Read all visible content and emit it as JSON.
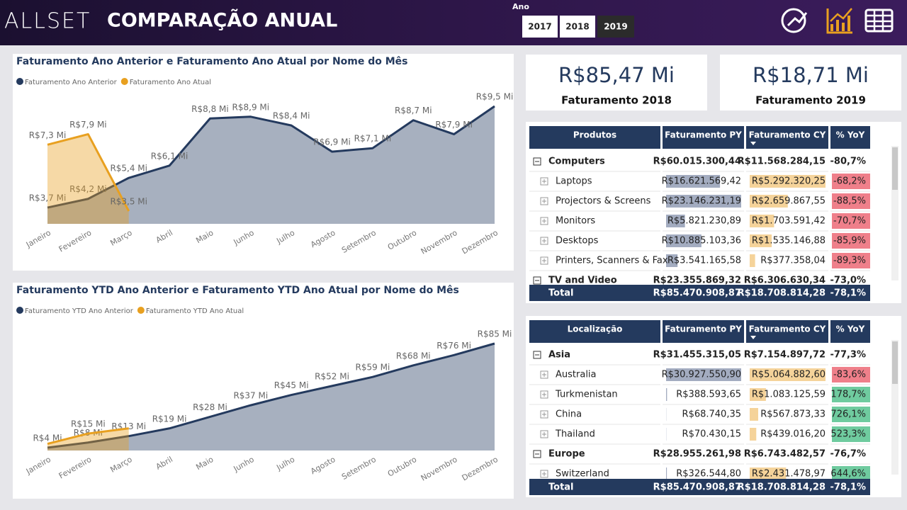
{
  "header": {
    "logo": "ALLSET",
    "title": "COMPARAÇÃO ANUAL",
    "slicer": {
      "label": "Ano",
      "options": [
        "2017",
        "2018",
        "2019"
      ],
      "selected": "2019"
    }
  },
  "kpis": [
    {
      "value": "R$85,47 Mi",
      "label": "Faturamento 2018"
    },
    {
      "value": "R$18,71 Mi",
      "label": "Faturamento 2019"
    }
  ],
  "chart_data": [
    {
      "type": "area",
      "title": "Faturamento Ano Anterior e Faturamento Ano Atual por Nome do Mês",
      "categories": [
        "Janeiro",
        "Fevereiro",
        "Março",
        "Abril",
        "Maio",
        "Junho",
        "Julho",
        "Agosto",
        "Setembro",
        "Outubro",
        "Novembro",
        "Dezembro"
      ],
      "series": [
        {
          "name": "Faturamento Ano Anterior",
          "color": "#243a5e",
          "values": [
            3.7,
            4.2,
            5.4,
            6.1,
            8.8,
            8.9,
            8.4,
            6.9,
            7.1,
            8.7,
            7.9,
            9.5
          ],
          "value_labels": [
            "R$3,7 Mi",
            "R$4,2 Mi",
            "R$5,4 Mi",
            "R$6,1 Mi",
            "R$8,8 Mi",
            "R$8,9 Mi",
            "R$8,4 Mi",
            "R$6,9 Mi",
            "R$7,1 Mi",
            "R$8,7 Mi",
            "R$7,9 Mi",
            "R$9,5 Mi"
          ]
        },
        {
          "name": "Faturamento Ano Atual",
          "color": "#e8a020",
          "values": [
            7.3,
            7.9,
            3.5,
            null,
            null,
            null,
            null,
            null,
            null,
            null,
            null,
            null
          ],
          "value_labels": [
            "R$7,3 Mi",
            "R$7,9 Mi",
            "R$3,5 Mi",
            null,
            null,
            null,
            null,
            null,
            null,
            null,
            null,
            null
          ]
        }
      ]
    },
    {
      "type": "area",
      "title": "Faturamento YTD Ano Anterior e Faturamento YTD Ano Atual por Nome do Mês",
      "categories": [
        "Janeiro",
        "Fevereiro",
        "Março",
        "Abril",
        "Maio",
        "Junho",
        "Julho",
        "Agosto",
        "Setembro",
        "Outubro",
        "Novembro",
        "Dezembro"
      ],
      "series": [
        {
          "name": "Faturamento YTD Ano Anterior",
          "color": "#243a5e",
          "values": [
            4,
            8,
            13,
            19,
            28,
            37,
            45,
            52,
            59,
            68,
            76,
            85
          ],
          "value_labels": [
            "R$4 Mi",
            "R$8 Mi",
            "R$13 Mi",
            "R$19 Mi",
            "R$28 Mi",
            "R$37 Mi",
            "R$45 Mi",
            "R$52 Mi",
            "R$59 Mi",
            "R$68 Mi",
            "R$76 Mi",
            "R$85 Mi"
          ]
        },
        {
          "name": "Faturamento YTD Ano Atual",
          "color": "#e8a020",
          "values": [
            7,
            15,
            19,
            null,
            null,
            null,
            null,
            null,
            null,
            null,
            null,
            null
          ],
          "value_labels": [
            null,
            "R$15 Mi",
            null,
            null,
            null,
            null,
            null,
            null,
            null,
            null,
            null,
            null
          ]
        }
      ]
    }
  ],
  "tables": [
    {
      "columns": [
        "Produtos",
        "Faturamento PY",
        "Faturamento CY",
        "% YoY"
      ],
      "groups": [
        {
          "name": "Computers",
          "py": "R$60.015.300,44",
          "cy": "R$11.568.284,15",
          "yoy": "-80,7%",
          "children": [
            {
              "name": "Laptops",
              "py": "R$16.621.569,42",
              "cy": "R$5.292.320,25",
              "yoy": "-68,2%"
            },
            {
              "name": "Projectors & Screens",
              "py": "R$23.146.231,19",
              "cy": "R$2.659.867,55",
              "yoy": "-88,5%"
            },
            {
              "name": "Monitors",
              "py": "R$5.821.230,89",
              "cy": "R$1.703.591,42",
              "yoy": "-70,7%"
            },
            {
              "name": "Desktops",
              "py": "R$10.885.103,36",
              "cy": "R$1.535.146,88",
              "yoy": "-85,9%"
            },
            {
              "name": "Printers, Scanners & Fax",
              "py": "R$3.541.165,58",
              "cy": "R$377.358,04",
              "yoy": "-89,3%"
            }
          ]
        },
        {
          "name": "TV and Video",
          "py": "R$23.355.869,32",
          "cy": "R$6.306.630,34",
          "yoy": "-73,0%",
          "children": []
        }
      ],
      "total": {
        "label": "Total",
        "py": "R$85.470.908,87",
        "cy": "R$18.708.814,28",
        "yoy": "-78,1%"
      }
    },
    {
      "columns": [
        "Localização",
        "Faturamento PY",
        "Faturamento CY",
        "% YoY"
      ],
      "groups": [
        {
          "name": "Asia",
          "py": "R$31.455.315,05",
          "cy": "R$7.154.897,72",
          "yoy": "-77,3%",
          "children": [
            {
              "name": "Australia",
              "py": "R$30.927.550,90",
              "cy": "R$5.064.882,60",
              "yoy": "-83,6%"
            },
            {
              "name": "Turkmenistan",
              "py": "R$388.593,65",
              "cy": "R$1.083.125,59",
              "yoy": "178,7%"
            },
            {
              "name": "China",
              "py": "R$68.740,35",
              "cy": "R$567.873,33",
              "yoy": "726,1%"
            },
            {
              "name": "Thailand",
              "py": "R$70.430,15",
              "cy": "R$439.016,20",
              "yoy": "523,3%"
            }
          ]
        },
        {
          "name": "Europe",
          "py": "R$28.955.261,98",
          "cy": "R$6.743.482,57",
          "yoy": "-76,7%",
          "children": [
            {
              "name": "Switzerland",
              "py": "R$326.544,80",
              "cy": "R$2.431.478,97",
              "yoy": "644,6%"
            }
          ]
        }
      ],
      "total": {
        "label": "Total",
        "py": "R$85.470.908,87",
        "cy": "R$18.708.814,28",
        "yoy": "-78,1%"
      }
    }
  ]
}
